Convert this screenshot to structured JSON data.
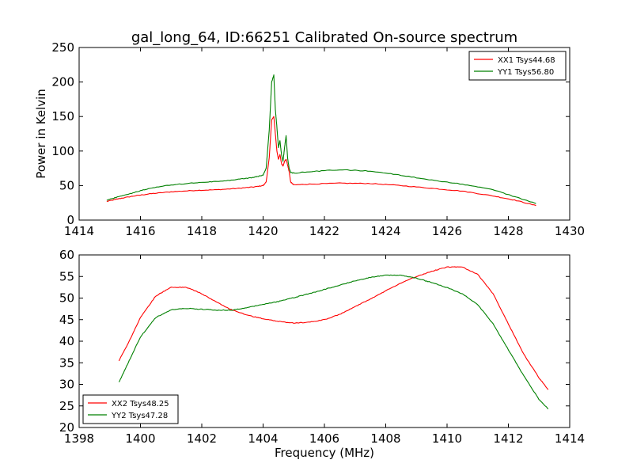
{
  "chart_data": [
    {
      "type": "line",
      "title": "gal_long_64, ID:66251 Calibrated On-source spectrum",
      "xlabel": "",
      "ylabel": "Power in Kelvin",
      "xlim": [
        1414,
        1430
      ],
      "ylim": [
        0,
        250
      ],
      "xticks": [
        1414,
        1416,
        1418,
        1420,
        1422,
        1424,
        1426,
        1428,
        1430
      ],
      "yticks": [
        0,
        50,
        100,
        150,
        200,
        250
      ],
      "grid": false,
      "legend": "top-right",
      "series": [
        {
          "name": "XX1 Tsys44.68",
          "color": "#ff0000",
          "x": [
            1414.9,
            1415.3,
            1415.8,
            1416.3,
            1417.0,
            1417.8,
            1418.5,
            1419.2,
            1419.7,
            1420.0,
            1420.1,
            1420.2,
            1420.28,
            1420.35,
            1420.4,
            1420.45,
            1420.5,
            1420.55,
            1420.6,
            1420.65,
            1420.7,
            1420.75,
            1420.8,
            1420.85,
            1420.9,
            1421.0,
            1421.5,
            1422.5,
            1423.5,
            1424.5,
            1425.5,
            1426.5,
            1427.5,
            1428.2,
            1428.9
          ],
          "values": [
            27,
            31,
            35,
            38,
            41,
            43,
            44,
            46,
            48,
            50,
            55,
            90,
            145,
            150,
            125,
            100,
            88,
            95,
            82,
            78,
            85,
            88,
            80,
            70,
            55,
            51,
            52,
            53.5,
            53,
            50,
            46,
            42,
            35,
            29,
            21
          ]
        },
        {
          "name": "YY1 Tsys56.80",
          "color": "#008000",
          "x": [
            1414.9,
            1415.3,
            1415.8,
            1416.3,
            1417.0,
            1417.8,
            1418.5,
            1419.2,
            1419.7,
            1420.0,
            1420.1,
            1420.2,
            1420.28,
            1420.35,
            1420.4,
            1420.45,
            1420.5,
            1420.55,
            1420.6,
            1420.65,
            1420.7,
            1420.75,
            1420.8,
            1420.85,
            1420.9,
            1421.0,
            1421.5,
            1422.5,
            1423.5,
            1424.5,
            1425.5,
            1426.5,
            1427.5,
            1428.2,
            1428.9
          ],
          "values": [
            29,
            34,
            40,
            46,
            51,
            54,
            56,
            59,
            62,
            65,
            75,
            130,
            200,
            210,
            160,
            135,
            105,
            115,
            95,
            85,
            105,
            122,
            90,
            75,
            69,
            68,
            70,
            73,
            71,
            65,
            58,
            52,
            44,
            34,
            24
          ]
        }
      ]
    },
    {
      "type": "line",
      "title": "",
      "xlabel": "Frequency (MHz)",
      "ylabel": "",
      "xlim": [
        1398,
        1414
      ],
      "ylim": [
        20,
        60
      ],
      "xticks": [
        1398,
        1400,
        1402,
        1404,
        1406,
        1408,
        1410,
        1412,
        1414
      ],
      "yticks": [
        20,
        25,
        30,
        35,
        40,
        45,
        50,
        55,
        60
      ],
      "grid": false,
      "legend": "bottom-left",
      "series": [
        {
          "name": "XX2 Tsys48.25",
          "color": "#ff0000",
          "x": [
            1399.3,
            1399.6,
            1400.0,
            1400.5,
            1401.0,
            1401.5,
            1402.0,
            1402.5,
            1403.0,
            1403.5,
            1404.0,
            1404.5,
            1405.0,
            1405.5,
            1406.0,
            1406.5,
            1407.0,
            1407.5,
            1408.0,
            1408.5,
            1409.0,
            1409.5,
            1410.0,
            1410.5,
            1411.0,
            1411.5,
            1412.0,
            1412.5,
            1413.0,
            1413.3
          ],
          "values": [
            35.5,
            39.5,
            45.5,
            50.5,
            52.5,
            52.5,
            51,
            49,
            47.2,
            46,
            45.2,
            44.6,
            44.2,
            44.4,
            45,
            46.2,
            48,
            49.8,
            51.7,
            53.5,
            55,
            56.2,
            57.2,
            57.2,
            55.5,
            51,
            44,
            37,
            31.5,
            28.8
          ]
        },
        {
          "name": "YY2 Tsys47.28",
          "color": "#008000",
          "x": [
            1399.3,
            1399.6,
            1400.0,
            1400.5,
            1401.0,
            1401.5,
            1402.0,
            1402.5,
            1403.0,
            1403.5,
            1404.0,
            1404.5,
            1405.0,
            1405.5,
            1406.0,
            1406.5,
            1407.0,
            1407.5,
            1408.0,
            1408.5,
            1409.0,
            1409.5,
            1410.0,
            1410.5,
            1411.0,
            1411.5,
            1412.0,
            1412.5,
            1413.0,
            1413.3
          ],
          "values": [
            30.5,
            35,
            41,
            45.5,
            47.3,
            47.6,
            47.4,
            47.2,
            47.2,
            47.8,
            48.5,
            49.2,
            50.1,
            51,
            52,
            53,
            54,
            54.8,
            55.3,
            55.3,
            54.6,
            53.6,
            52.4,
            51,
            48.5,
            44,
            38,
            32,
            26.5,
            24.3
          ]
        }
      ]
    }
  ]
}
